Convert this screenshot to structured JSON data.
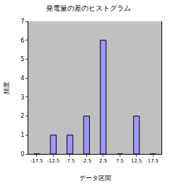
{
  "chart_data": {
    "type": "bar",
    "title": "発電量の差のヒストグラム",
    "x_label": "データ区間",
    "y_label": "頻度",
    "categories": [
      "-17.5",
      "-12.5",
      "-7.5",
      "-2.5",
      "2.5",
      "7.5",
      "12.5",
      "17.5"
    ],
    "values": [
      0,
      1,
      1,
      2,
      6,
      0,
      2,
      0
    ],
    "color": "#9999ff",
    "ylim": [
      0,
      7
    ],
    "yticks": [
      0,
      1,
      2,
      3,
      4,
      5,
      6,
      7
    ],
    "grid": false
  }
}
